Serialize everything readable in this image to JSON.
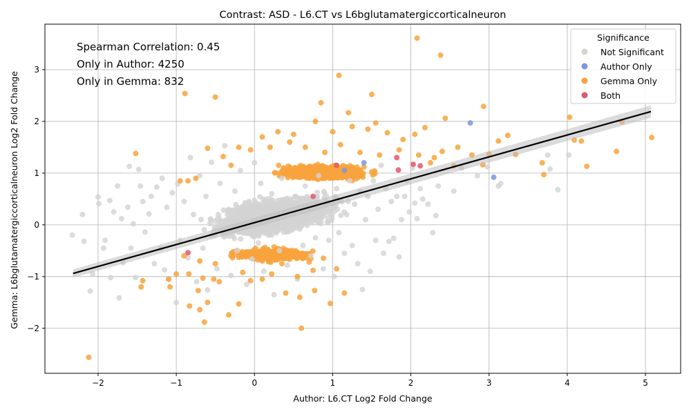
{
  "chart_data": {
    "type": "scatter",
    "title": "Contrast: ASD - L6.CT vs L6bglutamatergiccorticalneuron",
    "xlabel": "Author: L6.CT Log2 Fold Change",
    "ylabel": "Gemma: L6bglutamatergiccorticalneuron Log2 Fold Change",
    "xlim": [
      -2.68,
      5.45
    ],
    "ylim": [
      -2.87,
      3.88
    ],
    "xticks": [
      -2,
      -1,
      0,
      1,
      2,
      3,
      4,
      5
    ],
    "yticks": [
      -2,
      -1,
      0,
      1,
      2,
      3
    ],
    "grid": true,
    "annotations": [
      "Spearman Correlation: 0.45",
      "Only in Author: 4250",
      "Only in Gemma: 832"
    ],
    "legend": {
      "title": "Significance",
      "placement": "top-right",
      "entries": [
        {
          "label": "Not Significant",
          "color": "#d3d3d3"
        },
        {
          "label": "Author Only",
          "color": "#7f96d9"
        },
        {
          "label": "Gemma Only",
          "color": "#f8a33c"
        },
        {
          "label": "Both",
          "color": "#e0586b"
        }
      ]
    },
    "regression_line": {
      "x": [
        -2.32,
        5.07
      ],
      "y": [
        -0.94,
        2.19
      ],
      "color": "#000000"
    },
    "series": [
      {
        "name": "Not Significant",
        "color": "#d3d3d3",
        "points": [
          [
            -2.33,
            -0.2
          ],
          [
            -2.2,
            0.2
          ],
          [
            -2.18,
            -0.32
          ],
          [
            -2.1,
            -1.28
          ],
          [
            -2.07,
            -0.95
          ],
          [
            -2.0,
            0.54
          ],
          [
            -1.99,
            0.41
          ],
          [
            -1.93,
            -0.45
          ],
          [
            -1.91,
            -0.3
          ],
          [
            -1.85,
            0.47
          ],
          [
            -1.84,
            -1.02
          ],
          [
            -1.8,
            0.25
          ],
          [
            -1.75,
            0.75
          ],
          [
            -1.73,
            -1.41
          ],
          [
            -1.7,
            0.12
          ],
          [
            -1.68,
            -0.73
          ],
          [
            -1.62,
            0.34
          ],
          [
            -1.6,
            1.13
          ],
          [
            -1.58,
            -0.45
          ],
          [
            -1.55,
            0.02
          ],
          [
            -1.52,
            -1.02
          ],
          [
            -1.48,
            1.07
          ],
          [
            -1.46,
            0.75
          ],
          [
            -1.43,
            0.45
          ],
          [
            -1.4,
            -0.14
          ],
          [
            -1.35,
            0.21
          ],
          [
            -1.32,
            0.55
          ],
          [
            -1.28,
            -0.75
          ],
          [
            -1.25,
            0.73
          ],
          [
            -1.2,
            -0.46
          ],
          [
            -1.18,
            0.9
          ],
          [
            -1.15,
            -0.87
          ],
          [
            -1.12,
            0.34
          ],
          [
            -1.09,
            -1.05
          ],
          [
            -1.05,
            0.62
          ],
          [
            -1.0,
            -1.5
          ],
          [
            -0.98,
            0.79
          ],
          [
            -0.95,
            -0.3
          ],
          [
            -0.9,
            0.45
          ],
          [
            -0.85,
            -0.64
          ],
          [
            -0.82,
            1.3
          ],
          [
            -0.78,
            0.2
          ],
          [
            -0.74,
            -1.1
          ],
          [
            -0.7,
            0.95
          ],
          [
            -0.66,
            -0.45
          ],
          [
            -0.62,
            0.55
          ],
          [
            -0.6,
            -1.26
          ],
          [
            -0.55,
            1.21
          ],
          [
            -0.51,
            0.07
          ],
          [
            -0.48,
            -0.85
          ],
          [
            -0.44,
            0.8
          ],
          [
            -0.4,
            -0.2
          ],
          [
            -0.38,
            1.53
          ],
          [
            -0.33,
            0.3
          ],
          [
            -0.3,
            -0.98
          ],
          [
            -0.25,
            0.65
          ],
          [
            -0.22,
            -0.5
          ],
          [
            -0.18,
            1.05
          ],
          [
            -0.15,
            0.1
          ],
          [
            -0.1,
            -1.15
          ],
          [
            -0.07,
            0.45
          ],
          [
            -0.03,
            -0.66
          ],
          [
            0.0,
            1.2
          ],
          [
            0.03,
            0.2
          ],
          [
            0.05,
            -0.35
          ],
          [
            0.08,
            0.8
          ],
          [
            0.12,
            -0.9
          ],
          [
            0.15,
            0.3
          ],
          [
            0.18,
            -0.2
          ],
          [
            0.22,
            0.6
          ],
          [
            0.25,
            -1.35
          ],
          [
            0.28,
            0.15
          ],
          [
            0.32,
            -0.5
          ],
          [
            0.35,
            0.9
          ],
          [
            0.38,
            0.4
          ],
          [
            0.42,
            -0.78
          ],
          [
            0.45,
            0.2
          ],
          [
            0.48,
            -0.1
          ],
          [
            0.52,
            0.55
          ],
          [
            0.55,
            -1.05
          ],
          [
            0.58,
            0.1
          ],
          [
            0.62,
            -0.4
          ],
          [
            0.65,
            0.75
          ],
          [
            0.68,
            0.25
          ],
          [
            0.72,
            -0.6
          ],
          [
            0.75,
            0.4
          ],
          [
            0.78,
            -0.25
          ],
          [
            0.82,
            0.95
          ],
          [
            0.85,
            0.1
          ],
          [
            0.88,
            -0.85
          ],
          [
            0.92,
            0.55
          ],
          [
            0.95,
            -0.3
          ],
          [
            0.98,
            0.3
          ],
          [
            1.02,
            -1.0
          ],
          [
            1.05,
            0.7
          ],
          [
            1.08,
            -0.15
          ],
          [
            1.12,
            0.45
          ],
          [
            1.15,
            -0.55
          ],
          [
            1.18,
            0.2
          ],
          [
            1.22,
            0.85
          ],
          [
            1.25,
            -0.4
          ],
          [
            1.28,
            0.4
          ],
          [
            1.32,
            -0.75
          ],
          [
            1.35,
            0.65
          ],
          [
            1.38,
            -1.25
          ],
          [
            1.42,
            0.1
          ],
          [
            1.45,
            0.55
          ],
          [
            1.48,
            -0.9
          ],
          [
            1.52,
            0.85
          ],
          [
            1.55,
            -0.3
          ],
          [
            1.58,
            0.3
          ],
          [
            1.62,
            1.15
          ],
          [
            1.65,
            -0.55
          ],
          [
            1.68,
            0.7
          ],
          [
            1.72,
            -0.32
          ],
          [
            1.75,
            0.45
          ],
          [
            1.78,
            -0.26
          ],
          [
            1.82,
            0.55
          ],
          [
            1.85,
            -0.62
          ],
          [
            1.88,
            0.1
          ],
          [
            1.92,
            0.55
          ],
          [
            1.95,
            0.85
          ],
          [
            1.98,
            0.25
          ],
          [
            2.02,
            1.1
          ],
          [
            2.05,
            0.42
          ],
          [
            2.08,
            0.12
          ],
          [
            2.12,
            0.7
          ],
          [
            2.15,
            0.5
          ],
          [
            2.22,
            0.4
          ],
          [
            2.28,
            -0.15
          ],
          [
            2.32,
            0.18
          ],
          [
            2.35,
            0.75
          ],
          [
            2.55,
            0.65
          ],
          [
            2.65,
            1.1
          ],
          [
            2.85,
            0.95
          ],
          [
            2.98,
            1.12
          ],
          [
            3.12,
            0.75
          ],
          [
            3.15,
            0.8
          ],
          [
            3.75,
            1.35
          ],
          [
            3.78,
            1.08
          ],
          [
            3.88,
            0.68
          ],
          [
            4.02,
            1.35
          ]
        ]
      },
      {
        "name": "Author Only",
        "color": "#7f96d9",
        "points": [
          [
            2.76,
            1.97
          ],
          [
            3.06,
            0.92
          ],
          [
            1.15,
            1.05
          ],
          [
            1.4,
            1.2
          ]
        ]
      },
      {
        "name": "Gemma Only",
        "color": "#f8a33c",
        "points": [
          [
            -2.12,
            -2.56
          ],
          [
            -1.52,
            1.38
          ],
          [
            -1.45,
            -1.2
          ],
          [
            -1.43,
            -1.08
          ],
          [
            -1.1,
            -1.05
          ],
          [
            -1.08,
            -1.2
          ],
          [
            -1.0,
            -0.95
          ],
          [
            -0.89,
            2.54
          ],
          [
            -0.84,
            -0.95
          ],
          [
            -0.83,
            -1.57
          ],
          [
            -0.72,
            -1.27
          ],
          [
            -0.7,
            -1.64
          ],
          [
            -0.66,
            -1.03
          ],
          [
            -0.64,
            -1.88
          ],
          [
            -0.6,
            -1.5
          ],
          [
            -0.52,
            -1.05
          ],
          [
            -0.5,
            2.47
          ],
          [
            -0.45,
            -1.1
          ],
          [
            -0.33,
            -1.74
          ],
          [
            -0.2,
            -1.53
          ],
          [
            -0.15,
            -0.92
          ],
          [
            -0.05,
            -1.08
          ],
          [
            0.1,
            -1.05
          ],
          [
            0.22,
            -0.95
          ],
          [
            0.35,
            -0.75
          ],
          [
            0.4,
            -1.32
          ],
          [
            0.55,
            -1.0
          ],
          [
            0.58,
            -1.4
          ],
          [
            0.6,
            -2.0
          ],
          [
            0.75,
            -0.88
          ],
          [
            0.77,
            -1.27
          ],
          [
            0.85,
            2.36
          ],
          [
            0.97,
            -1.52
          ],
          [
            1.05,
            -0.85
          ],
          [
            1.08,
            2.89
          ],
          [
            1.15,
            -1.32
          ],
          [
            1.2,
            2.17
          ],
          [
            1.5,
            2.52
          ],
          [
            1.55,
            1.97
          ],
          [
            2.08,
            3.61
          ],
          [
            2.38,
            3.28
          ],
          [
            2.44,
            2.06
          ],
          [
            2.93,
            2.29
          ],
          [
            3.24,
            1.73
          ],
          [
            3.34,
            1.36
          ],
          [
            3.68,
            1.2
          ],
          [
            3.7,
            0.97
          ],
          [
            4.03,
            2.08
          ],
          [
            4.09,
            1.64
          ],
          [
            4.18,
            1.62
          ],
          [
            4.25,
            1.13
          ],
          [
            4.63,
            1.42
          ],
          [
            4.7,
            1.99
          ],
          [
            5.08,
            1.69
          ],
          [
            3.12,
            1.62
          ],
          [
            2.92,
            1.16
          ],
          [
            2.55,
            1.14
          ],
          [
            2.3,
            1.3
          ],
          [
            0.1,
            1.7
          ],
          [
            0.3,
            1.8
          ],
          [
            0.5,
            1.75
          ],
          [
            0.78,
            2.0
          ],
          [
            1.0,
            1.8
          ],
          [
            1.25,
            1.9
          ],
          [
            1.45,
            1.85
          ],
          [
            1.7,
            1.78
          ],
          [
            1.9,
            1.65
          ],
          [
            2.05,
            1.75
          ],
          [
            2.18,
            1.88
          ],
          [
            -0.05,
            1.45
          ],
          [
            -0.2,
            1.5
          ],
          [
            -0.4,
            1.32
          ],
          [
            -0.6,
            1.48
          ],
          [
            -0.75,
            0.9
          ],
          [
            -0.85,
            0.85
          ],
          [
            -0.95,
            0.85
          ],
          [
            -0.3,
            1.15
          ],
          [
            0.2,
            1.5
          ],
          [
            0.45,
            1.6
          ],
          [
            0.65,
            1.5
          ],
          [
            0.9,
            1.4
          ],
          [
            1.1,
            1.55
          ],
          [
            1.35,
            1.4
          ],
          [
            1.6,
            1.35
          ],
          [
            1.85,
            1.45
          ],
          [
            2.1,
            1.35
          ],
          [
            2.25,
            1.2
          ],
          [
            2.4,
            1.42
          ],
          [
            2.6,
            1.5
          ],
          [
            2.78,
            1.35
          ],
          [
            3.0,
            1.37
          ],
          [
            -0.9,
            -0.6
          ],
          [
            -0.7,
            -0.7
          ],
          [
            -0.5,
            -0.75
          ],
          [
            -0.3,
            -0.6
          ],
          [
            -0.1,
            -0.55
          ],
          [
            0.1,
            -0.7
          ],
          [
            0.3,
            -0.62
          ],
          [
            0.5,
            -0.58
          ],
          [
            0.7,
            -0.72
          ]
        ]
      },
      {
        "name": "Both",
        "color": "#e0586b",
        "points": [
          [
            -0.85,
            -0.54
          ],
          [
            0.75,
            0.55
          ],
          [
            1.05,
            1.15
          ],
          [
            1.82,
            1.3
          ],
          [
            1.84,
            1.06
          ],
          [
            2.12,
            1.14
          ],
          [
            2.03,
            1.17
          ]
        ]
      }
    ]
  }
}
